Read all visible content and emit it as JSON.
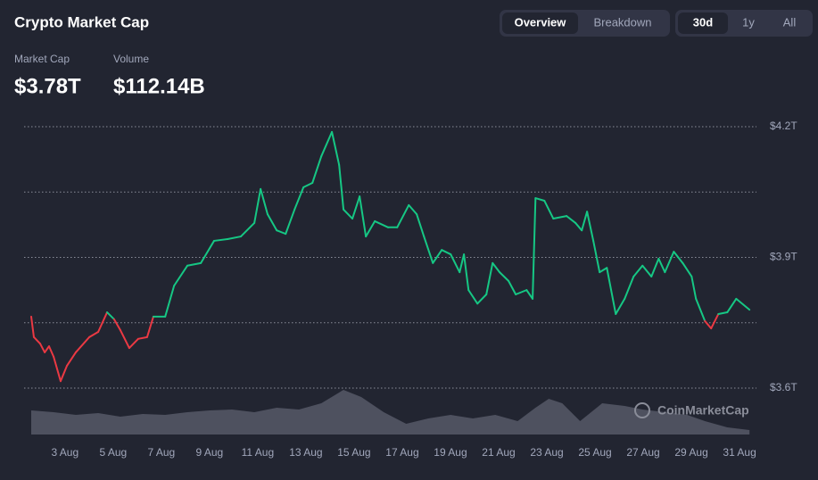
{
  "chart_data": {
    "type": "line",
    "title": "Crypto Market Cap",
    "tabs": [
      "Overview",
      "Breakdown"
    ],
    "active_tab": 0,
    "ranges": [
      "30d",
      "1y",
      "All"
    ],
    "active_range": 0,
    "stats": [
      {
        "label": "Market Cap",
        "value": "$3.78T"
      },
      {
        "label": "Volume",
        "value": "$112.14B"
      }
    ],
    "watermark": "CoinMarketCap",
    "up_color": "#16c784",
    "down_color": "#ea3943",
    "x": [
      1.6,
      1.71,
      1.97,
      2.16,
      2.34,
      2.53,
      2.82,
      3.08,
      3.45,
      4.01,
      4.38,
      4.75,
      5.04,
      5.3,
      5.67,
      6.04,
      6.41,
      6.67,
      7.16,
      7.53,
      8.08,
      8.64,
      9.19,
      9.75,
      10.3,
      10.86,
      11.12,
      11.41,
      11.79,
      12.16,
      12.53,
      12.9,
      13.27,
      13.64,
      14.08,
      14.38,
      14.56,
      14.93,
      15.23,
      15.49,
      15.86,
      16.41,
      16.79,
      17.27,
      17.6,
      17.9,
      18.27,
      18.64,
      19.01,
      19.38,
      19.56,
      19.75,
      20.12,
      20.49,
      20.75,
      21.04,
      21.41,
      21.71,
      22.16,
      22.41,
      22.53,
      22.9,
      23.27,
      23.82,
      24.19,
      24.45,
      24.67,
      24.93,
      25.19,
      25.49,
      25.86,
      26.23,
      26.6,
      26.97,
      27.34,
      27.64,
      27.9,
      28.27,
      28.64,
      29.01,
      29.19,
      29.56,
      29.82,
      30.12,
      30.49,
      30.86,
      31.41
    ],
    "values": [
      3.764,
      3.717,
      3.702,
      3.682,
      3.696,
      3.672,
      3.616,
      3.651,
      3.682,
      3.717,
      3.729,
      3.774,
      3.758,
      3.733,
      3.692,
      3.713,
      3.717,
      3.764,
      3.764,
      3.835,
      3.881,
      3.887,
      3.938,
      3.942,
      3.948,
      3.979,
      4.057,
      3.999,
      3.962,
      3.954,
      4.01,
      4.061,
      4.071,
      4.132,
      4.188,
      4.112,
      4.01,
      3.989,
      4.04,
      3.948,
      3.983,
      3.969,
      3.969,
      4.02,
      3.999,
      3.948,
      3.887,
      3.917,
      3.907,
      3.866,
      3.907,
      3.825,
      3.794,
      3.815,
      3.887,
      3.866,
      3.846,
      3.815,
      3.825,
      3.805,
      4.036,
      4.03,
      3.989,
      3.995,
      3.979,
      3.962,
      4.005,
      3.938,
      3.866,
      3.876,
      3.77,
      3.805,
      3.856,
      3.881,
      3.856,
      3.897,
      3.866,
      3.913,
      3.887,
      3.856,
      3.805,
      3.754,
      3.737,
      3.77,
      3.774,
      3.805,
      3.78
    ],
    "volume": {
      "color": "#5a5d6b",
      "x": [
        1.6,
        2.53,
        3.45,
        4.38,
        5.3,
        6.23,
        7.16,
        8.08,
        9.01,
        9.93,
        10.86,
        11.79,
        12.71,
        13.64,
        14.56,
        15.3,
        16.23,
        17.16,
        18.08,
        19.01,
        19.93,
        20.86,
        21.79,
        22.53,
        23.08,
        23.64,
        24.38,
        25.3,
        26.23,
        26.97,
        27.9,
        28.82,
        29.56,
        30.49,
        31.41
      ],
      "values": [
        81,
        75,
        66,
        72,
        60,
        69,
        66,
        75,
        81,
        84,
        75,
        90,
        84,
        105,
        150,
        126,
        75,
        36,
        54,
        66,
        54,
        66,
        45,
        90,
        120,
        105,
        45,
        105,
        96,
        84,
        75,
        66,
        45,
        24,
        15
      ],
      "ylim": [
        0,
        150
      ]
    },
    "xlim": [
      1.6,
      31.7
    ],
    "xticks": [
      {
        "value": 3,
        "label": "3 Aug"
      },
      {
        "value": 5,
        "label": "5 Aug"
      },
      {
        "value": 7,
        "label": "7 Aug"
      },
      {
        "value": 9,
        "label": "9 Aug"
      },
      {
        "value": 11,
        "label": "11 Aug"
      },
      {
        "value": 13,
        "label": "13 Aug"
      },
      {
        "value": 15,
        "label": "15 Aug"
      },
      {
        "value": 17,
        "label": "17 Aug"
      },
      {
        "value": 19,
        "label": "19 Aug"
      },
      {
        "value": 21,
        "label": "21 Aug"
      },
      {
        "value": 23,
        "label": "23 Aug"
      },
      {
        "value": 25,
        "label": "25 Aug"
      },
      {
        "value": 27,
        "label": "27 Aug"
      },
      {
        "value": 29,
        "label": "29 Aug"
      },
      {
        "value": 31,
        "label": "31 Aug"
      }
    ],
    "ylim": [
      3.6,
      4.2
    ],
    "yticks": [
      {
        "value": 3.6,
        "label": "$3.6T"
      },
      {
        "value": 3.9,
        "label": "$3.9T"
      },
      {
        "value": 4.2,
        "label": "$4.2T"
      }
    ],
    "minor_yticks": [
      3.75,
      4.05
    ],
    "grid": true
  }
}
